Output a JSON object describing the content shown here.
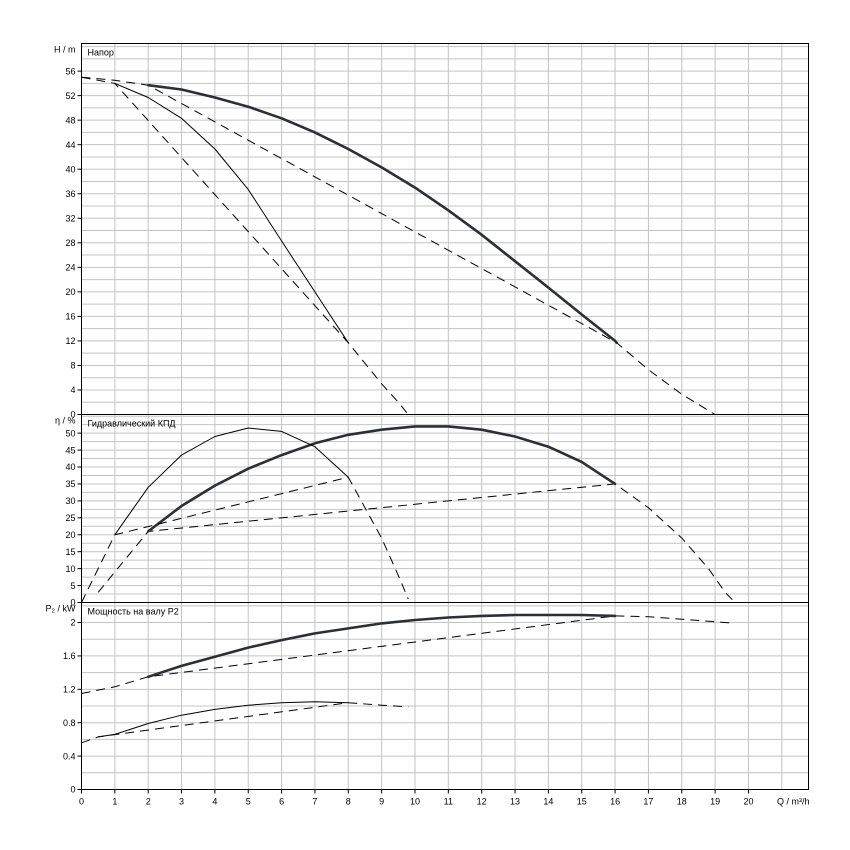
{
  "chart_data": {
    "type": "line",
    "x_axis": {
      "label": "Q / m³/h",
      "range": [
        0,
        21.8
      ],
      "tick_values": [
        0,
        1,
        2,
        3,
        4,
        5,
        6,
        7,
        8,
        9,
        10,
        11,
        12,
        13,
        14,
        15,
        16,
        17,
        18,
        19,
        20
      ]
    },
    "panels": [
      {
        "id": "head",
        "title": "Напор",
        "ylabel": "H / m",
        "ylim": [
          0,
          60.5
        ],
        "y_ticks": [
          0,
          4,
          8,
          12,
          16,
          20,
          24,
          28,
          32,
          36,
          40,
          44,
          48,
          52,
          56
        ],
        "grid": true,
        "series": [
          {
            "style": "bold",
            "solid": [
              [
                2,
                53.7
              ],
              [
                3,
                53
              ],
              [
                4,
                51.7
              ],
              [
                5,
                50.2
              ],
              [
                6,
                48.3
              ],
              [
                7,
                46
              ],
              [
                8,
                43.3
              ],
              [
                9,
                40.3
              ],
              [
                10,
                37
              ],
              [
                11,
                33.3
              ],
              [
                12,
                29.3
              ],
              [
                13,
                25
              ],
              [
                14,
                20.7
              ],
              [
                15,
                16.3
              ],
              [
                16,
                12
              ],
              [
                16.05,
                11.7
              ]
            ],
            "dashed": [
              [
                0,
                55
              ],
              [
                1,
                54.5
              ],
              [
                2,
                53.7
              ],
              [
                16.05,
                11.7
              ],
              [
                17,
                7.3
              ],
              [
                18,
                3.3
              ],
              [
                19,
                0
              ],
              [
                19.35,
                0
              ]
            ]
          },
          {
            "style": "thin",
            "solid": [
              [
                1,
                54
              ],
              [
                2,
                51.7
              ],
              [
                3,
                48.3
              ],
              [
                4,
                43.3
              ],
              [
                5,
                36.7
              ],
              [
                6,
                28.3
              ],
              [
                7,
                20
              ],
              [
                8,
                11.7
              ]
            ],
            "dashed": [
              [
                0,
                55
              ],
              [
                1,
                54
              ],
              [
                8,
                11.7
              ],
              [
                9,
                5
              ],
              [
                9.5,
                2
              ],
              [
                9.8,
                0
              ]
            ]
          }
        ]
      },
      {
        "id": "efficiency",
        "title": "Гидравлический КПД",
        "ylabel": "η / %",
        "ylim": [
          0,
          55.5
        ],
        "y_ticks": [
          0,
          5,
          10,
          15,
          20,
          25,
          30,
          35,
          40,
          45,
          50
        ],
        "grid": true,
        "series": [
          {
            "style": "bold",
            "solid": [
              [
                2,
                21
              ],
              [
                3,
                28.5
              ],
              [
                4,
                34.5
              ],
              [
                5,
                39.5
              ],
              [
                6,
                43.5
              ],
              [
                7,
                47
              ],
              [
                8,
                49.5
              ],
              [
                9,
                51
              ],
              [
                10,
                52
              ],
              [
                11,
                52
              ],
              [
                12,
                51
              ],
              [
                13,
                49
              ],
              [
                14,
                46
              ],
              [
                15,
                41.5
              ],
              [
                16,
                35
              ]
            ],
            "dashed": [
              [
                0.5,
                3
              ],
              [
                1,
                9
              ],
              [
                2,
                21
              ],
              [
                16,
                35
              ],
              [
                17,
                28
              ],
              [
                18,
                19
              ],
              [
                18.8,
                10
              ],
              [
                19.3,
                3
              ],
              [
                19.6,
                0
              ]
            ]
          },
          {
            "style": "thin",
            "solid": [
              [
                1,
                20
              ],
              [
                2,
                34
              ],
              [
                3,
                43.5
              ],
              [
                4,
                49
              ],
              [
                5,
                51.5
              ],
              [
                6,
                50.5
              ],
              [
                7,
                46
              ],
              [
                8,
                37
              ]
            ],
            "dashed": [
              [
                0,
                0
              ],
              [
                0.5,
                10
              ],
              [
                1,
                20
              ],
              [
                8,
                37
              ],
              [
                9,
                19
              ],
              [
                9.5,
                8
              ],
              [
                9.8,
                1
              ]
            ]
          }
        ]
      },
      {
        "id": "power",
        "title": "Мощность на валу P2",
        "ylabel": "P₂ / kW",
        "ylim": [
          0,
          2.24
        ],
        "y_ticks": [
          0,
          0.4,
          0.8,
          1.2,
          1.6,
          2
        ],
        "grid": true,
        "series": [
          {
            "style": "bold",
            "solid": [
              [
                2,
                1.35
              ],
              [
                3,
                1.48
              ],
              [
                4,
                1.59
              ],
              [
                5,
                1.7
              ],
              [
                6,
                1.79
              ],
              [
                7,
                1.87
              ],
              [
                8,
                1.93
              ],
              [
                9,
                1.99
              ],
              [
                10,
                2.03
              ],
              [
                11,
                2.06
              ],
              [
                12,
                2.08
              ],
              [
                13,
                2.09
              ],
              [
                14,
                2.09
              ],
              [
                15,
                2.09
              ],
              [
                16,
                2.08
              ]
            ],
            "dashed": [
              [
                0,
                1.15
              ],
              [
                1,
                1.23
              ],
              [
                2,
                1.35
              ],
              [
                16,
                2.08
              ],
              [
                17,
                2.07
              ],
              [
                18,
                2.04
              ],
              [
                19,
                2.01
              ],
              [
                19.6,
                1.99
              ]
            ]
          },
          {
            "style": "thin",
            "solid": [
              [
                0.5,
                0.63
              ],
              [
                1,
                0.66
              ],
              [
                2,
                0.79
              ],
              [
                3,
                0.89
              ],
              [
                4,
                0.96
              ],
              [
                5,
                1.01
              ],
              [
                6,
                1.04
              ],
              [
                7,
                1.05
              ],
              [
                8,
                1.04
              ]
            ],
            "dashed": [
              [
                0,
                0.56
              ],
              [
                0.5,
                0.63
              ],
              [
                8,
                1.04
              ],
              [
                9,
                1.01
              ],
              [
                9.8,
                0.99
              ]
            ]
          }
        ]
      }
    ]
  }
}
